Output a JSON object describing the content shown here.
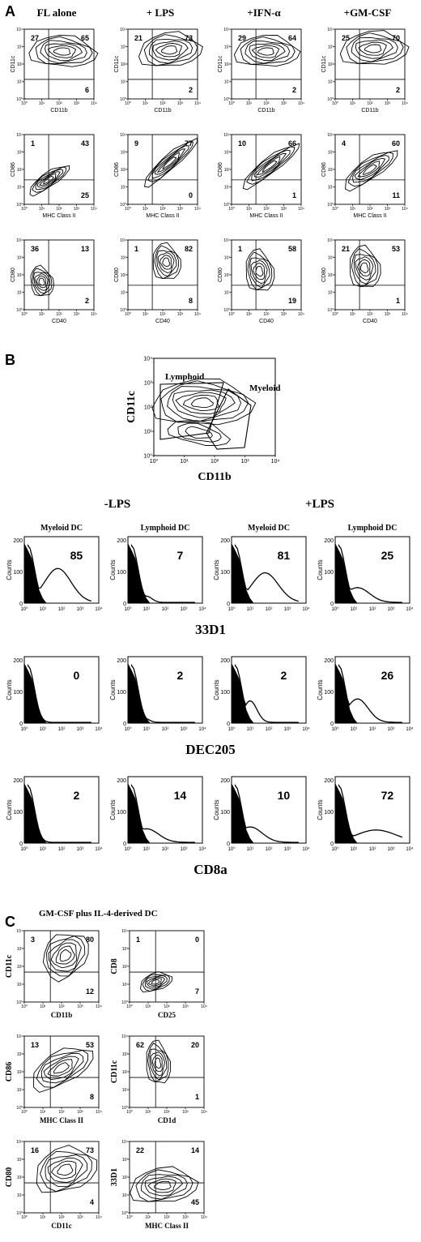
{
  "panelA": {
    "letter": "A",
    "conditions": [
      "FL alone",
      "+ LPS",
      "+IFN-α",
      "+GM-CSF"
    ],
    "tick_labels": [
      "10⁰",
      "10¹",
      "10²",
      "10³",
      "10⁴"
    ],
    "rows": [
      {
        "ylabel": "CD11c",
        "xlabel": "CD11b",
        "values": [
          [
            "27",
            "65",
            "6"
          ],
          [
            "21",
            "73",
            "2"
          ],
          [
            "29",
            "64",
            "2"
          ],
          [
            "25",
            "70",
            "2"
          ]
        ]
      },
      {
        "ylabel": "CD86",
        "xlabel": "MHC Class II",
        "values": [
          [
            "1",
            "43",
            "25"
          ],
          [
            "9",
            "77",
            "0"
          ],
          [
            "10",
            "66",
            "1"
          ],
          [
            "4",
            "60",
            "11"
          ]
        ]
      },
      {
        "ylabel": "CD80",
        "xlabel": "CD40",
        "values": [
          [
            "36",
            "13",
            "2"
          ],
          [
            "1",
            "82",
            "8"
          ],
          [
            "1",
            "58",
            "19"
          ],
          [
            "21",
            "53",
            "1"
          ]
        ]
      }
    ]
  },
  "panelB": {
    "letter": "B",
    "gate_plot": {
      "ylabel": "CD11c",
      "xlabel": "CD11b",
      "gate_labels": [
        "Lymphoid",
        "Myeloid"
      ]
    },
    "groups": [
      "-LPS",
      "+LPS"
    ],
    "subtitles": [
      "Myeloid DC",
      "Lymphoid DC",
      "Myeloid DC",
      "Lymphoid DC"
    ],
    "hist_ylabel": "Counts",
    "hist_yticks": [
      "0",
      "100",
      "200"
    ],
    "markers": [
      {
        "name": "33D1",
        "values": [
          "85",
          "7",
          "81",
          "25"
        ]
      },
      {
        "name": "DEC205",
        "values": [
          "0",
          "2",
          "2",
          "26"
        ]
      },
      {
        "name": "CD8a",
        "values": [
          "2",
          "14",
          "10",
          "72"
        ]
      }
    ]
  },
  "panelC": {
    "letter": "C",
    "title": "GM-CSF plus IL-4-derived DC",
    "plots": [
      {
        "ylabel": "CD11c",
        "xlabel": "CD11b",
        "values": [
          "3",
          "80",
          "12"
        ]
      },
      {
        "ylabel": "CD8",
        "xlabel": "CD25",
        "values": [
          "1",
          "0",
          "7"
        ]
      },
      {
        "ylabel": "CD86",
        "xlabel": "MHC Class II",
        "values": [
          "13",
          "53",
          "8"
        ]
      },
      {
        "ylabel": "CD11c",
        "xlabel": "CD1d",
        "values": [
          "62",
          "20",
          "1"
        ]
      },
      {
        "ylabel": "CD80",
        "xlabel": "CD11c",
        "values": [
          "16",
          "73",
          "4"
        ]
      },
      {
        "ylabel": "33D1",
        "xlabel": "MHC Class II",
        "values": [
          "22",
          "14",
          "45"
        ]
      }
    ]
  }
}
